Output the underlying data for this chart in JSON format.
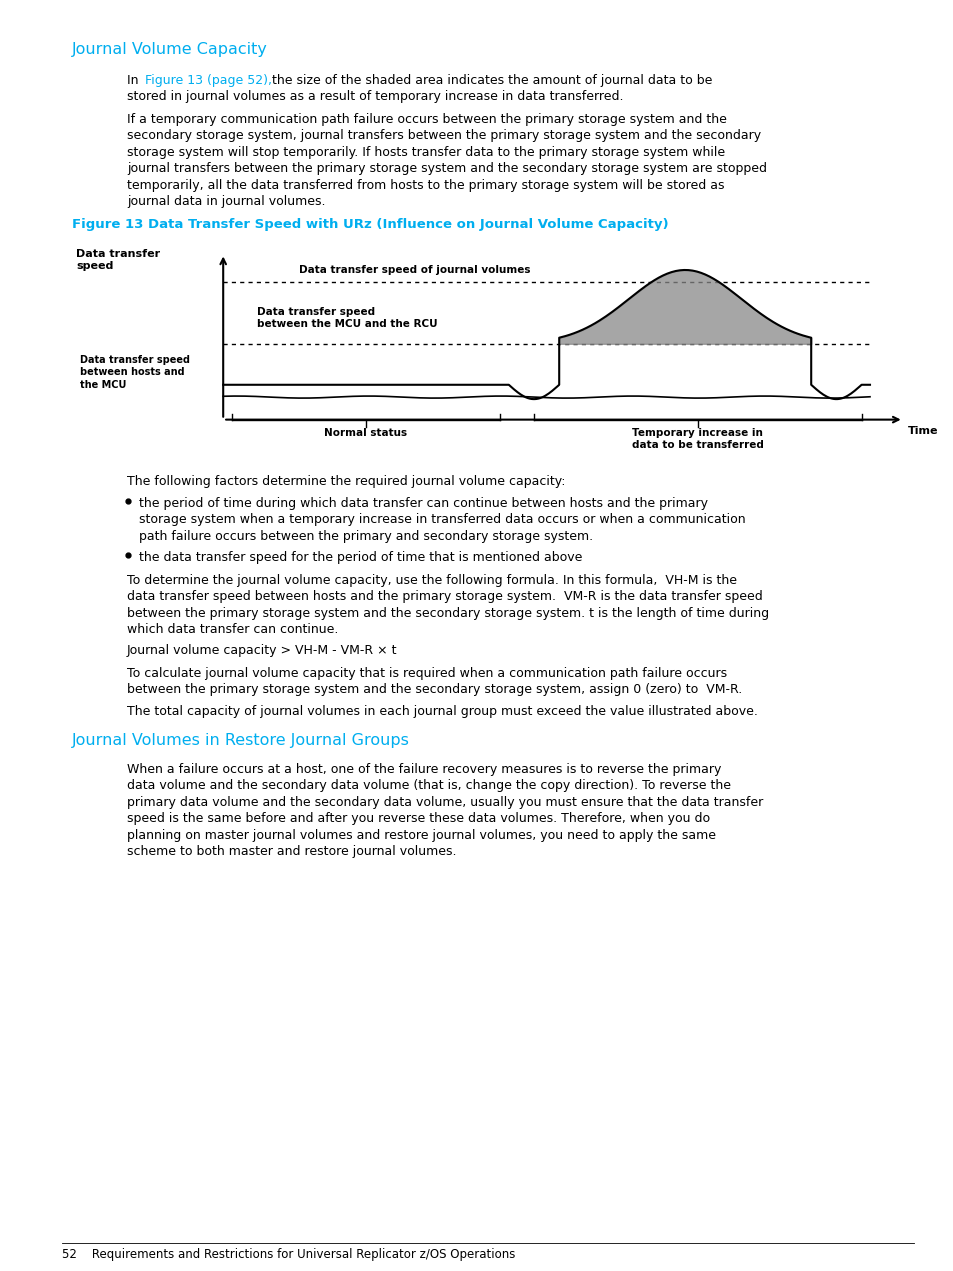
{
  "bg_color": "#ffffff",
  "page_width": 9.54,
  "page_height": 12.71,
  "cyan_color": "#00aeef",
  "heading1": "Journal Volume Capacity",
  "heading2": "Journal Volumes in Restore Journal Groups",
  "fig_caption": "Figure 13 Data Transfer Speed with URz (Influence on Journal Volume Capacity)",
  "footer_text": "52    Requirements and Restrictions for Universal Replicator z/OS Operations",
  "gray_shade": "#888888",
  "text_black": "#000000"
}
